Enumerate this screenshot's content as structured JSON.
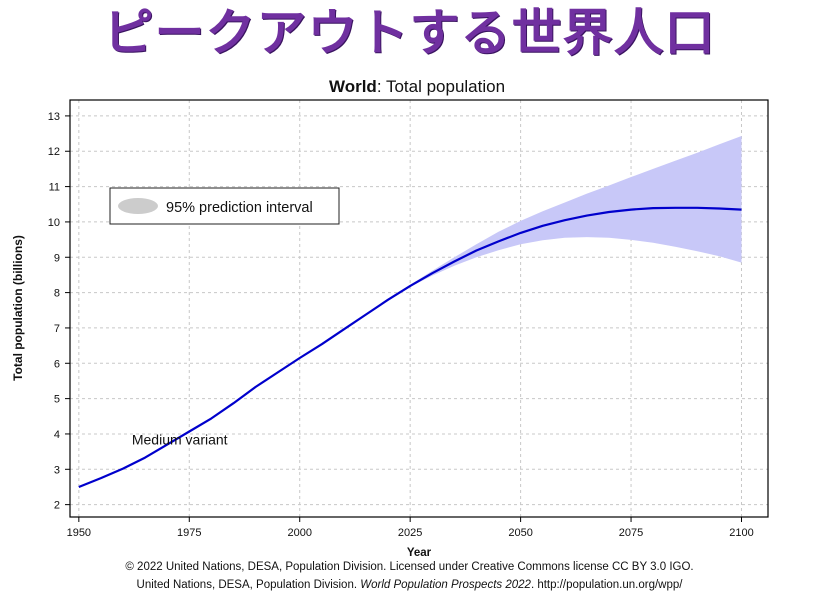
{
  "slide": {
    "title": "ピークアウトする世界人口",
    "title_color": "#7030a0"
  },
  "chart_data": {
    "type": "line",
    "title": "Total population",
    "title_bold_prefix": "World",
    "title_separator": ": ",
    "xlabel": "Year",
    "ylabel": "Total population (billions)",
    "xlim": [
      1948,
      2106
    ],
    "ylim": [
      1.65,
      13.45
    ],
    "x_ticks": [
      1950,
      1975,
      2000,
      2025,
      2050,
      2075,
      2100
    ],
    "y_ticks": [
      2,
      3,
      4,
      5,
      6,
      7,
      8,
      9,
      10,
      11,
      12,
      13
    ],
    "grid": true,
    "legend_position": "top-left",
    "legend_items": [
      {
        "label": "95% prediction interval",
        "color": "#cccccc"
      }
    ],
    "series": [
      {
        "name": "Medium variant",
        "color": "#0000cc",
        "x": [
          1950,
          1955,
          1960,
          1965,
          1970,
          1975,
          1980,
          1985,
          1990,
          1995,
          2000,
          2005,
          2010,
          2015,
          2020,
          2025,
          2030,
          2035,
          2040,
          2045,
          2050,
          2055,
          2060,
          2065,
          2070,
          2075,
          2080,
          2085,
          2090,
          2095,
          2100
        ],
        "y": [
          2.5,
          2.75,
          3.02,
          3.33,
          3.7,
          4.07,
          4.44,
          4.87,
          5.33,
          5.74,
          6.15,
          6.54,
          6.96,
          7.38,
          7.8,
          8.19,
          8.55,
          8.88,
          9.19,
          9.45,
          9.69,
          9.89,
          10.05,
          10.18,
          10.28,
          10.35,
          10.39,
          10.4,
          10.4,
          10.38,
          10.35
        ]
      }
    ],
    "band": {
      "name": "95% prediction interval",
      "color": "#c8c8f8",
      "x": [
        2022,
        2025,
        2030,
        2035,
        2040,
        2045,
        2050,
        2055,
        2060,
        2065,
        2070,
        2075,
        2080,
        2085,
        2090,
        2095,
        2100
      ],
      "lower": [
        7.96,
        8.16,
        8.48,
        8.76,
        9.0,
        9.2,
        9.37,
        9.48,
        9.55,
        9.57,
        9.55,
        9.49,
        9.41,
        9.3,
        9.17,
        9.03,
        8.85
      ],
      "upper": [
        7.98,
        8.22,
        8.62,
        9.0,
        9.37,
        9.72,
        10.03,
        10.3,
        10.55,
        10.8,
        11.03,
        11.27,
        11.5,
        11.73,
        11.96,
        12.2,
        12.43
      ]
    },
    "annotations": [
      {
        "text": "Medium variant",
        "x": 1962,
        "y": 3.7
      }
    ]
  },
  "credits": {
    "line1": "© 2022 United Nations, DESA, Population Division. Licensed under Creative Commons license CC BY 3.0 IGO.",
    "line2_a": "United Nations, DESA, Population Division. ",
    "line2_italic": "World Population Prospects 2022",
    "line2_b": ". http://population.un.org/wpp/"
  }
}
